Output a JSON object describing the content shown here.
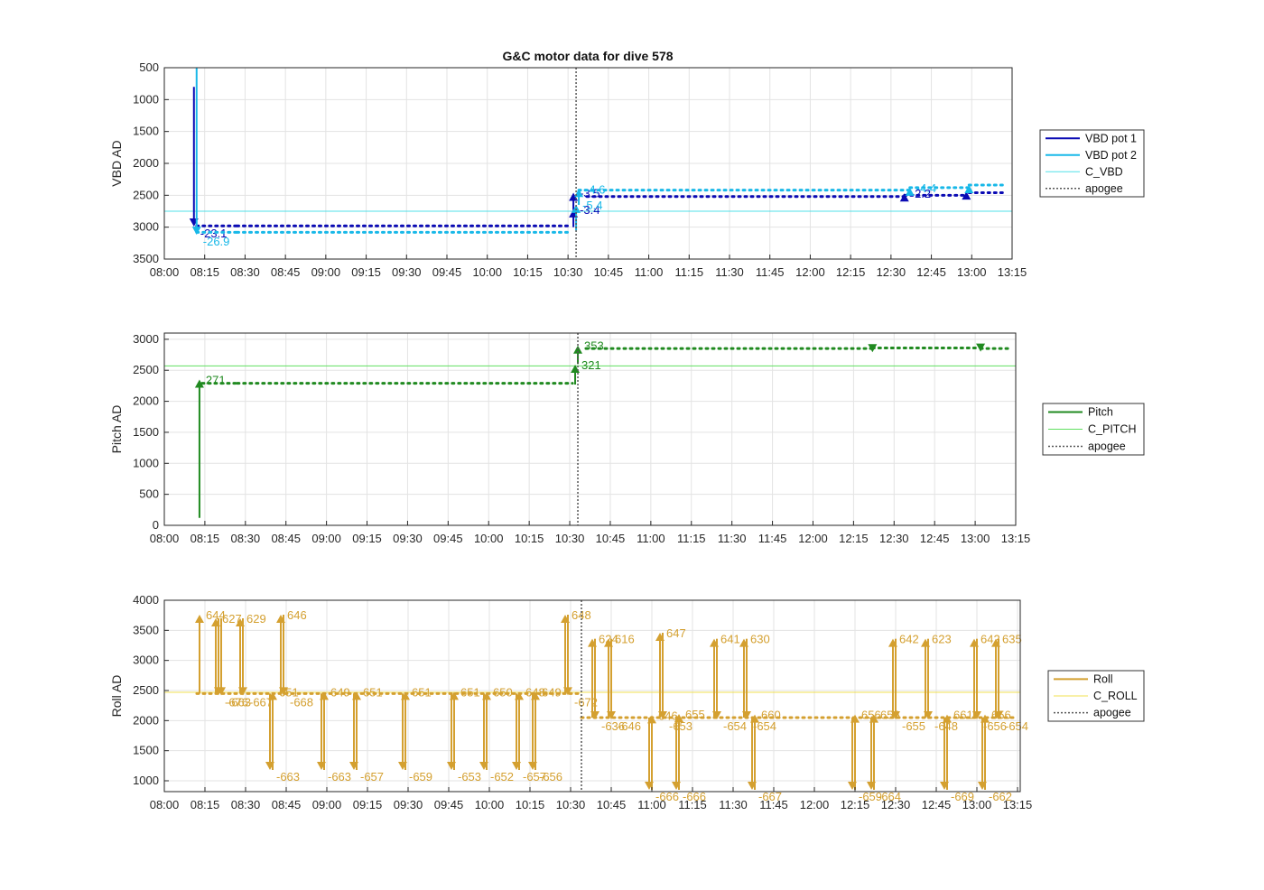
{
  "title": "G&C motor data for dive 578",
  "colors": {
    "vbd1": "#0A0AB4",
    "vbd2": "#18B8E8",
    "c_vbd": "#50E0E8",
    "pitch": "#208A20",
    "c_pitch": "#60E060",
    "roll": "#D4A030",
    "c_roll": "#F0E050",
    "apogee": "#555555",
    "grid": "#E3E3E3",
    "axis": "#262626"
  },
  "time_ticks": [
    "08:00",
    "08:15",
    "08:30",
    "08:45",
    "09:00",
    "09:15",
    "09:30",
    "09:45",
    "10:00",
    "10:15",
    "10:30",
    "10:45",
    "11:00",
    "11:15",
    "11:30",
    "11:45",
    "12:00",
    "12:15",
    "12:30",
    "12:45",
    "13:00",
    "13:15"
  ],
  "chart_data": [
    {
      "type": "line",
      "title": "G&C motor data for dive 578",
      "ylabel": "VBD AD",
      "y_reversed": true,
      "xlim": [
        "08:00",
        "13:15"
      ],
      "ylim": [
        500,
        3500
      ],
      "yticks": [
        "500",
        "1000",
        "1500",
        "2000",
        "2500",
        "3000",
        "3500"
      ],
      "apogee": "10:33",
      "reference": {
        "name": "C_VBD",
        "value": 2750
      },
      "legend": [
        "VBD pot 1",
        "VBD pot 2",
        "C_VBD",
        "apogee"
      ],
      "legend_placement": "outside-right",
      "series": [
        {
          "name": "VBD pot 1",
          "segments": [
            {
              "x": [
                "08:12",
                "08:27"
              ],
              "y": 2980
            },
            {
              "x": [
                "08:27",
                "10:31"
              ],
              "y": 2980
            },
            {
              "x": [
                "10:37",
                "12:35"
              ],
              "y": 2520
            },
            {
              "x": [
                "12:35",
                "12:58"
              ],
              "y": 2500
            },
            {
              "x": [
                "12:59",
                "13:12"
              ],
              "y": 2460
            }
          ],
          "moves": [
            {
              "time": "08:11",
              "from": 800,
              "to": 2990,
              "label": "-23.1"
            },
            {
              "time": "10:32",
              "from": 3000,
              "to": 2720,
              "label": "-3.4"
            },
            {
              "time": "10:32",
              "from": 2730,
              "to": 2460,
              "label": "-3.5"
            },
            {
              "time": "12:35",
              "from": 2520,
              "to": 2470,
              "label": "-2.2"
            },
            {
              "time": "12:58",
              "from": 2480,
              "to": 2440,
              "label": ""
            }
          ]
        },
        {
          "name": "VBD pot 2",
          "segments": [
            {
              "x": [
                "08:12",
                "08:27"
              ],
              "y": 3080
            },
            {
              "x": [
                "08:27",
                "10:31"
              ],
              "y": 3080
            },
            {
              "x": [
                "10:34",
                "12:37"
              ],
              "y": 2420
            },
            {
              "x": [
                "12:37",
                "12:59"
              ],
              "y": 2380
            },
            {
              "x": [
                "12:59",
                "13:12"
              ],
              "y": 2340
            }
          ],
          "moves": [
            {
              "time": "08:12",
              "from": 500,
              "to": 3120,
              "label": "-26.9"
            },
            {
              "time": "10:33",
              "from": 3050,
              "to": 2650,
              "label": "-5.4"
            },
            {
              "time": "10:34",
              "from": 2650,
              "to": 2400,
              "label": "-4.6"
            },
            {
              "time": "12:37",
              "from": 2440,
              "to": 2380,
              "label": "-4.4"
            },
            {
              "time": "12:59",
              "from": 2400,
              "to": 2340,
              "label": ""
            }
          ]
        }
      ]
    },
    {
      "type": "line",
      "ylabel": "Pitch AD",
      "xlim": [
        "08:00",
        "13:15"
      ],
      "ylim": [
        0,
        3100
      ],
      "yticks": [
        "0",
        "500",
        "1000",
        "1500",
        "2000",
        "2500",
        "3000"
      ],
      "apogee": "10:33",
      "reference": {
        "name": "C_PITCH",
        "value": 2570
      },
      "legend": [
        "Pitch",
        "C_PITCH",
        "apogee"
      ],
      "legend_placement": "outside-right",
      "series": [
        {
          "name": "Pitch",
          "segments": [
            {
              "x": [
                "08:14",
                "08:27"
              ],
              "y": 2290
            },
            {
              "x": [
                "08:27",
                "10:31"
              ],
              "y": 2290
            },
            {
              "x": [
                "10:36",
                "12:22"
              ],
              "y": 2850
            },
            {
              "x": [
                "12:22",
                "13:01"
              ],
              "y": 2860
            },
            {
              "x": [
                "13:02",
                "13:13"
              ],
              "y": 2850
            }
          ],
          "moves": [
            {
              "time": "08:13",
              "from": 120,
              "to": 2350,
              "label": "271"
            },
            {
              "time": "10:32",
              "from": 2270,
              "to": 2590,
              "label": "321"
            },
            {
              "time": "10:33",
              "from": 2600,
              "to": 2900,
              "label": "353"
            },
            {
              "time": "12:22",
              "from": 2860,
              "to": 2790,
              "label": ""
            },
            {
              "time": "13:02",
              "from": 2880,
              "to": 2800,
              "label": ""
            }
          ]
        }
      ]
    },
    {
      "type": "line",
      "ylabel": "Roll AD",
      "xlim": [
        "08:00",
        "13:16"
      ],
      "ylim": [
        820,
        4000
      ],
      "yticks": [
        "1000",
        "1500",
        "2000",
        "2500",
        "3000",
        "3500",
        "4000"
      ],
      "apogee": "10:34",
      "reference": {
        "name": "C_ROLL",
        "value": 2470
      },
      "legend": [
        "Roll",
        "C_ROLL",
        "apogee"
      ],
      "legend_placement": "outside-right",
      "series": [
        {
          "name": "Roll",
          "segments": [
            {
              "x": [
                "08:12",
                "10:33"
              ],
              "y": 2450
            },
            {
              "x": [
                "10:34",
                "13:15"
              ],
              "y": 2050
            }
          ],
          "moves": [
            {
              "time": "08:13",
              "from": 2450,
              "to": 3760,
              "label": "644"
            },
            {
              "time": "08:19",
              "from": 2450,
              "to": 3700,
              "label": "627"
            },
            {
              "time": "08:20",
              "from": 3700,
              "to": 2420,
              "label": "-676"
            },
            {
              "time": "08:21",
              "from": 3700,
              "to": 2420,
              "label": "-663"
            },
            {
              "time": "08:28",
              "from": 2450,
              "to": 3700,
              "label": "629"
            },
            {
              "time": "08:29",
              "from": 3700,
              "to": 2420,
              "label": "-667"
            },
            {
              "time": "08:39",
              "from": 2450,
              "to": 1180,
              "label": "-663"
            },
            {
              "time": "08:40",
              "from": 1180,
              "to": 2480,
              "label": "651"
            },
            {
              "time": "08:43",
              "from": 2450,
              "to": 3760,
              "label": "646"
            },
            {
              "time": "08:44",
              "from": 3760,
              "to": 2420,
              "label": "-668"
            },
            {
              "time": "08:58",
              "from": 2450,
              "to": 1180,
              "label": "-663"
            },
            {
              "time": "08:59",
              "from": 1180,
              "to": 2480,
              "label": "649"
            },
            {
              "time": "09:10",
              "from": 2450,
              "to": 1180,
              "label": "-657"
            },
            {
              "time": "09:11",
              "from": 1180,
              "to": 2480,
              "label": "651"
            },
            {
              "time": "09:28",
              "from": 2450,
              "to": 1180,
              "label": "-659"
            },
            {
              "time": "09:29",
              "from": 1180,
              "to": 2480,
              "label": "651"
            },
            {
              "time": "09:46",
              "from": 2450,
              "to": 1180,
              "label": "-653"
            },
            {
              "time": "09:47",
              "from": 1180,
              "to": 2480,
              "label": "651"
            },
            {
              "time": "09:58",
              "from": 2450,
              "to": 1180,
              "label": "-652"
            },
            {
              "time": "09:59",
              "from": 1180,
              "to": 2480,
              "label": "650"
            },
            {
              "time": "10:10",
              "from": 2450,
              "to": 1180,
              "label": "-657"
            },
            {
              "time": "10:11",
              "from": 1180,
              "to": 2480,
              "label": "648"
            },
            {
              "time": "10:16",
              "from": 2450,
              "to": 1180,
              "label": "-656"
            },
            {
              "time": "10:17",
              "from": 1180,
              "to": 2480,
              "label": "649"
            },
            {
              "time": "10:28",
              "from": 2450,
              "to": 3760,
              "label": "648"
            },
            {
              "time": "10:29",
              "from": 3760,
              "to": 2420,
              "label": "-672"
            },
            {
              "time": "10:38",
              "from": 2050,
              "to": 3360,
              "label": "624"
            },
            {
              "time": "10:39",
              "from": 3360,
              "to": 2020,
              "label": "-636"
            },
            {
              "time": "10:44",
              "from": 2050,
              "to": 3360,
              "label": "616"
            },
            {
              "time": "10:45",
              "from": 3360,
              "to": 2020,
              "label": "-646"
            },
            {
              "time": "10:59",
              "from": 2050,
              "to": 850,
              "label": "-666"
            },
            {
              "time": "11:00",
              "from": 850,
              "to": 2090,
              "label": "646"
            },
            {
              "time": "11:03",
              "from": 2050,
              "to": 3460,
              "label": "647"
            },
            {
              "time": "11:04",
              "from": 3460,
              "to": 2020,
              "label": "-653"
            },
            {
              "time": "11:09",
              "from": 2050,
              "to": 850,
              "label": "-666"
            },
            {
              "time": "11:10",
              "from": 850,
              "to": 2110,
              "label": "655"
            },
            {
              "time": "11:23",
              "from": 2050,
              "to": 3360,
              "label": "641"
            },
            {
              "time": "11:24",
              "from": 3360,
              "to": 2020,
              "label": "-654"
            },
            {
              "time": "11:34",
              "from": 2050,
              "to": 3360,
              "label": "630"
            },
            {
              "time": "11:35",
              "from": 3360,
              "to": 2020,
              "label": "-654"
            },
            {
              "time": "11:37",
              "from": 2050,
              "to": 850,
              "label": "-667"
            },
            {
              "time": "11:38",
              "from": 850,
              "to": 2100,
              "label": "660"
            },
            {
              "time": "12:14",
              "from": 2050,
              "to": 850,
              "label": "-659"
            },
            {
              "time": "12:15",
              "from": 850,
              "to": 2100,
              "label": "656"
            },
            {
              "time": "12:21",
              "from": 2050,
              "to": 850,
              "label": "-664"
            },
            {
              "time": "12:22",
              "from": 850,
              "to": 2100,
              "label": "656"
            },
            {
              "time": "12:29",
              "from": 2050,
              "to": 3360,
              "label": "642"
            },
            {
              "time": "12:30",
              "from": 3360,
              "to": 2020,
              "label": "-655"
            },
            {
              "time": "12:41",
              "from": 2050,
              "to": 3360,
              "label": "623"
            },
            {
              "time": "12:42",
              "from": 3360,
              "to": 2020,
              "label": "-648"
            },
            {
              "time": "12:48",
              "from": 2050,
              "to": 850,
              "label": "-669"
            },
            {
              "time": "12:49",
              "from": 850,
              "to": 2100,
              "label": "661"
            },
            {
              "time": "12:59",
              "from": 2050,
              "to": 3360,
              "label": "642"
            },
            {
              "time": "13:00",
              "from": 3360,
              "to": 2020,
              "label": "-656"
            },
            {
              "time": "13:02",
              "from": 2050,
              "to": 850,
              "label": "-662"
            },
            {
              "time": "13:03",
              "from": 850,
              "to": 2100,
              "label": "656"
            },
            {
              "time": "13:07",
              "from": 2050,
              "to": 3360,
              "label": "635"
            },
            {
              "time": "13:08",
              "from": 3360,
              "to": 2020,
              "label": "-654"
            }
          ]
        }
      ]
    }
  ]
}
